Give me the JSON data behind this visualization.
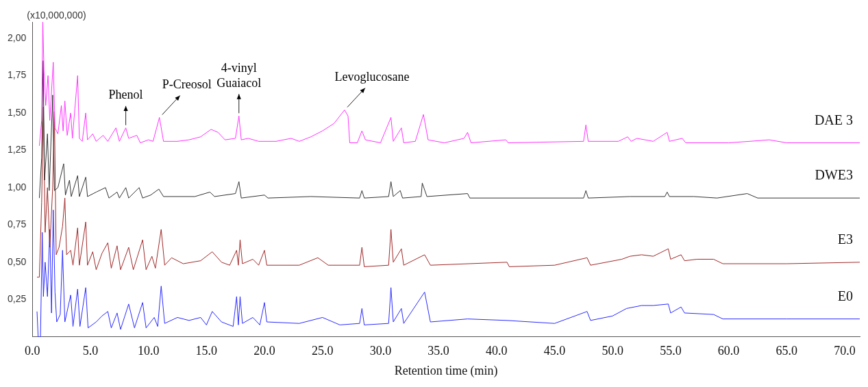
{
  "chart_data": {
    "type": "line",
    "xlabel": "Retention time (min)",
    "ylabel": "(x10,000,000)",
    "xlim": [
      0,
      71.3
    ],
    "xticks": [
      {
        "value": 0,
        "label": "0.0"
      },
      {
        "value": 5,
        "label": "5.0"
      },
      {
        "value": 10,
        "label": "10.0"
      },
      {
        "value": 15,
        "label": "15.0"
      },
      {
        "value": 20,
        "label": "20.0"
      },
      {
        "value": 25,
        "label": "25.0"
      },
      {
        "value": 30,
        "label": "30.0"
      },
      {
        "value": 35,
        "label": "35.0"
      },
      {
        "value": 40,
        "label": "40.0"
      },
      {
        "value": 45,
        "label": "45.0"
      },
      {
        "value": 50,
        "label": "50.0"
      },
      {
        "value": 55,
        "label": "55.0"
      },
      {
        "value": 60,
        "label": "60.0"
      },
      {
        "value": 65,
        "label": "65.0"
      },
      {
        "value": 70,
        "label": "70.0"
      }
    ],
    "ylim": [
      0,
      2.11
    ],
    "yticks": [
      {
        "value": 0.25,
        "label": "0,25"
      },
      {
        "value": 0.5,
        "label": "0,50"
      },
      {
        "value": 0.75,
        "label": "0,75"
      },
      {
        "value": 1,
        "label": "1,00"
      },
      {
        "value": 1.25,
        "label": "1,25"
      },
      {
        "value": 1.5,
        "label": "1,50"
      },
      {
        "value": 1.75,
        "label": "1,75"
      },
      {
        "value": 2,
        "label": "2,00"
      }
    ],
    "grid": false,
    "legend": false,
    "marker": "none",
    "line_style": "solid",
    "annotations": [
      {
        "text": "Phenol",
        "x": 8.05,
        "y": 1.4
      },
      {
        "text": "P-Creosol",
        "x": 10.95,
        "y": 1.47
      },
      {
        "text": "4-vinyl Guaiacol",
        "x": 17.8,
        "y": 1.48
      },
      {
        "text": "Levoglucosane",
        "x": 26.9,
        "y": 1.52
      }
    ],
    "series": [
      {
        "name": "DAE 3",
        "color": "#ff33ff",
        "x": [
          0.6,
          0.8,
          0.9,
          1.0,
          1.15,
          1.35,
          1.5,
          1.8,
          1.95,
          2.2,
          2.5,
          2.65,
          2.8,
          3.0,
          3.3,
          3.45,
          3.9,
          4.05,
          4.3,
          4.6,
          4.75,
          5.2,
          5.5,
          6.1,
          6.5,
          7.2,
          7.5,
          8.05,
          8.3,
          9.0,
          9.3,
          10.0,
          10.4,
          10.95,
          11.3,
          12.5,
          13.5,
          14.5,
          15.4,
          16.0,
          16.6,
          17.5,
          17.8,
          18.0,
          18.6,
          19.5,
          21.0,
          22.3,
          23.0,
          24.0,
          25.0,
          26.0,
          26.9,
          27.2,
          27.35,
          28.0,
          28.4,
          28.7,
          30.0,
          30.9,
          31.1,
          31.8,
          32.0,
          33.0,
          33.7,
          34.1,
          35.5,
          37.2,
          37.5,
          37.8,
          40.8,
          41.0,
          47.5,
          47.7,
          47.9,
          50.5,
          51.3,
          51.6,
          52.1,
          53.5,
          54.7,
          54.9,
          56.0,
          56.3,
          60.0,
          61.8,
          63.5,
          65.0,
          71.3
        ],
        "values": [
          1.28,
          1.45,
          2.11,
          1.79,
          1.55,
          1.75,
          1.45,
          1.84,
          1.4,
          1.36,
          1.55,
          1.38,
          1.58,
          1.35,
          1.5,
          1.33,
          1.75,
          1.33,
          1.31,
          1.5,
          1.32,
          1.36,
          1.31,
          1.35,
          1.31,
          1.4,
          1.31,
          1.4,
          1.33,
          1.35,
          1.3,
          1.32,
          1.31,
          1.47,
          1.31,
          1.31,
          1.32,
          1.34,
          1.39,
          1.37,
          1.32,
          1.33,
          1.48,
          1.32,
          1.33,
          1.31,
          1.31,
          1.33,
          1.31,
          1.34,
          1.38,
          1.43,
          1.52,
          1.48,
          1.3,
          1.3,
          1.38,
          1.32,
          1.3,
          1.47,
          1.31,
          1.4,
          1.3,
          1.31,
          1.49,
          1.32,
          1.3,
          1.33,
          1.37,
          1.3,
          1.32,
          1.3,
          1.31,
          1.42,
          1.31,
          1.31,
          1.34,
          1.31,
          1.33,
          1.31,
          1.37,
          1.31,
          1.33,
          1.3,
          1.3,
          1.31,
          1.32,
          1.3,
          1.3
        ]
      },
      {
        "name": "DWE3",
        "color": "#333333",
        "x": [
          0.6,
          0.8,
          0.93,
          1.05,
          1.3,
          1.45,
          1.75,
          1.9,
          2.2,
          2.7,
          2.85,
          3.2,
          3.35,
          3.9,
          4.05,
          4.6,
          4.75,
          5.5,
          6.3,
          6.6,
          7.3,
          7.5,
          8.05,
          8.3,
          9.2,
          9.5,
          10.2,
          10.9,
          11.3,
          12.5,
          14.0,
          15.3,
          15.7,
          17.5,
          17.8,
          18.0,
          20.0,
          20.3,
          24.0,
          28.2,
          28.4,
          28.6,
          30.7,
          30.9,
          31.1,
          31.7,
          31.9,
          33.5,
          33.6,
          34.0,
          37.5,
          37.7,
          47.5,
          47.7,
          47.9,
          51.5,
          54.5,
          54.7,
          54.9,
          57.0,
          59.0,
          61.6,
          62.5,
          71.3
        ],
        "values": [
          0.93,
          1.2,
          1.85,
          1.05,
          1.36,
          0.98,
          1.62,
          0.98,
          1.0,
          1.16,
          0.95,
          1.05,
          0.94,
          1.08,
          0.94,
          1.07,
          0.94,
          0.97,
          1.0,
          0.93,
          0.97,
          0.93,
          1.0,
          0.93,
          1.0,
          0.93,
          0.95,
          0.99,
          0.94,
          0.94,
          0.94,
          0.97,
          0.94,
          0.96,
          1.04,
          0.93,
          0.95,
          0.93,
          0.94,
          0.93,
          0.98,
          0.93,
          0.94,
          1.04,
          0.94,
          0.98,
          0.93,
          0.94,
          1.03,
          0.94,
          0.96,
          0.93,
          0.93,
          0.98,
          0.93,
          0.94,
          0.94,
          0.97,
          0.94,
          0.94,
          0.93,
          0.96,
          0.93,
          0.93
        ]
      },
      {
        "name": "E3",
        "color": "#a02828",
        "x": [
          0.4,
          0.6,
          0.8,
          0.95,
          1.1,
          1.3,
          1.5,
          1.75,
          1.9,
          2.05,
          2.3,
          2.6,
          2.8,
          2.95,
          3.3,
          3.5,
          3.9,
          4.05,
          4.6,
          4.75,
          5.2,
          5.5,
          6.0,
          6.5,
          6.8,
          7.3,
          7.6,
          8.3,
          8.7,
          9.5,
          9.8,
          10.3,
          10.6,
          11.1,
          11.4,
          12.0,
          13.0,
          14.5,
          15.5,
          16.3,
          17.0,
          17.6,
          17.75,
          17.9,
          18.1,
          19.0,
          19.5,
          20.0,
          20.2,
          23.0,
          24.6,
          25.5,
          28.2,
          28.4,
          28.6,
          30.7,
          30.9,
          31.1,
          31.8,
          32.0,
          33.8,
          34.3,
          40.9,
          41.1,
          45.0,
          47.8,
          48.1,
          50.8,
          51.5,
          52.5,
          53.5,
          54.8,
          55.0,
          55.9,
          56.2,
          57.3,
          58.7,
          59.5,
          65.0,
          71.3
        ],
        "values": [
          0.4,
          0.4,
          0.9,
          1.54,
          0.7,
          1.0,
          0.6,
          1.0,
          1.51,
          0.55,
          0.6,
          0.74,
          0.93,
          0.55,
          0.58,
          0.48,
          0.73,
          0.48,
          0.77,
          0.48,
          0.57,
          0.45,
          0.56,
          0.63,
          0.46,
          0.61,
          0.45,
          0.6,
          0.45,
          0.65,
          0.45,
          0.54,
          0.46,
          0.72,
          0.48,
          0.53,
          0.49,
          0.51,
          0.57,
          0.5,
          0.48,
          0.58,
          0.48,
          0.65,
          0.49,
          0.52,
          0.48,
          0.58,
          0.48,
          0.48,
          0.53,
          0.48,
          0.48,
          0.6,
          0.47,
          0.48,
          0.72,
          0.5,
          0.59,
          0.48,
          0.55,
          0.48,
          0.5,
          0.47,
          0.48,
          0.53,
          0.48,
          0.52,
          0.54,
          0.55,
          0.54,
          0.59,
          0.52,
          0.55,
          0.51,
          0.52,
          0.52,
          0.49,
          0.49,
          0.5
        ]
      },
      {
        "name": "E0",
        "color": "#2a2aff",
        "x": [
          0.4,
          0.5,
          0.7,
          0.85,
          0.95,
          1.1,
          1.3,
          1.5,
          1.65,
          1.8,
          1.95,
          2.1,
          2.4,
          2.6,
          2.8,
          3.3,
          3.5,
          3.9,
          4.1,
          4.6,
          4.8,
          5.5,
          6.0,
          6.5,
          6.8,
          7.3,
          7.6,
          8.3,
          8.8,
          9.5,
          9.8,
          10.5,
          10.8,
          11.1,
          11.4,
          12.5,
          13.5,
          14.5,
          15.0,
          15.5,
          16.3,
          17.3,
          17.6,
          17.75,
          17.9,
          18.1,
          19.0,
          19.6,
          20.0,
          20.2,
          23.0,
          25.0,
          26.5,
          28.2,
          28.4,
          28.6,
          30.7,
          30.9,
          31.1,
          31.8,
          32.0,
          33.8,
          34.3,
          37.5,
          40.9,
          45.0,
          47.8,
          48.1,
          50.0,
          51.2,
          52.5,
          53.5,
          54.8,
          55.0,
          55.9,
          56.2,
          58.7,
          59.5,
          65.0,
          71.3
        ],
        "values": [
          0.17,
          0.0,
          0.0,
          0.7,
          0.27,
          0.5,
          0.27,
          0.72,
          0.16,
          0.85,
          0.3,
          0.1,
          0.15,
          0.58,
          0.1,
          0.28,
          0.07,
          0.32,
          0.07,
          0.33,
          0.06,
          0.1,
          0.14,
          0.17,
          0.06,
          0.16,
          0.05,
          0.22,
          0.06,
          0.23,
          0.06,
          0.13,
          0.07,
          0.34,
          0.09,
          0.13,
          0.11,
          0.13,
          0.08,
          0.17,
          0.1,
          0.07,
          0.27,
          0.08,
          0.27,
          0.09,
          0.13,
          0.08,
          0.23,
          0.1,
          0.09,
          0.13,
          0.08,
          0.09,
          0.19,
          0.08,
          0.09,
          0.33,
          0.1,
          0.19,
          0.09,
          0.3,
          0.1,
          0.12,
          0.11,
          0.09,
          0.17,
          0.11,
          0.14,
          0.19,
          0.21,
          0.21,
          0.22,
          0.16,
          0.2,
          0.16,
          0.15,
          0.12,
          0.12,
          0.12
        ]
      }
    ]
  }
}
